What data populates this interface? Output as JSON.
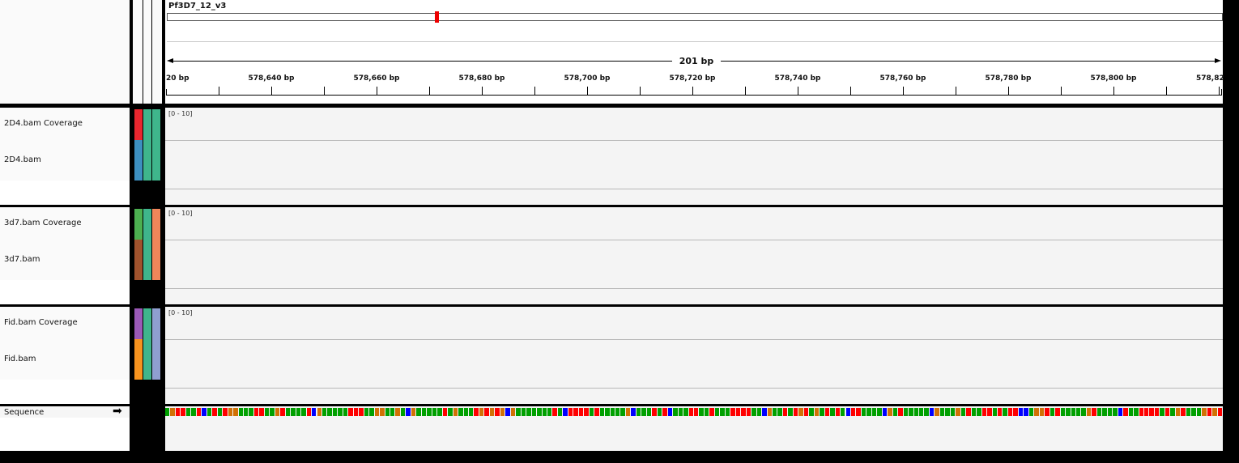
{
  "header": {
    "chromosome": "Pf3D7_12_v3",
    "span_label": "201 bp",
    "ruler_ticks": [
      "20 bp",
      "578,640 bp",
      "578,660 bp",
      "578,680 bp",
      "578,700 bp",
      "578,720 bp",
      "578,740 bp",
      "578,760 bp",
      "578,780 bp",
      "578,800 bp",
      "578,82"
    ]
  },
  "panels": [
    {
      "coverage_name": "2D4.bam Coverage",
      "alignment_name": "2D4.bam",
      "data_range": "[0 - 10]",
      "attr_colors": [
        "#e8262e",
        "#3d8fc0",
        "#3fb58c",
        "#3fb58c"
      ]
    },
    {
      "coverage_name": "3d7.bam Coverage",
      "alignment_name": "3d7.bam",
      "data_range": "[0 - 10]",
      "attr_colors": [
        "#4caf50",
        "#a0522d",
        "#3fb58c",
        "#f0865a"
      ]
    },
    {
      "coverage_name": "Fid.bam Coverage",
      "alignment_name": "Fid.bam",
      "data_range": "[0 - 10]",
      "attr_colors": [
        "#9b59b6",
        "#f7931e",
        "#3fb58c",
        "#8f9fd0"
      ]
    }
  ],
  "sequence": {
    "label": "Sequence",
    "strand_arrow": "➡",
    "base_colors": {
      "A": "#00a000",
      "C": "#0000ff",
      "G": "#d17105",
      "T": "#ff0000"
    },
    "bases": "AGTTAATCATATGGAAATTAAGTAAAATCGAAAAATTTAAGGAAGACGAAAAATAGAAATGTGTGCGAAAAAAATACTTTTATAAAAAGCAAATATCAAATTAATAAATTTTAACGAATATGTAGATATACTTAAAACGATAAAAACGAAAGATAATTATATTCCAGGTATAAAAAGTAAAACTAATTTTATAGTAAAGTGT"
  }
}
